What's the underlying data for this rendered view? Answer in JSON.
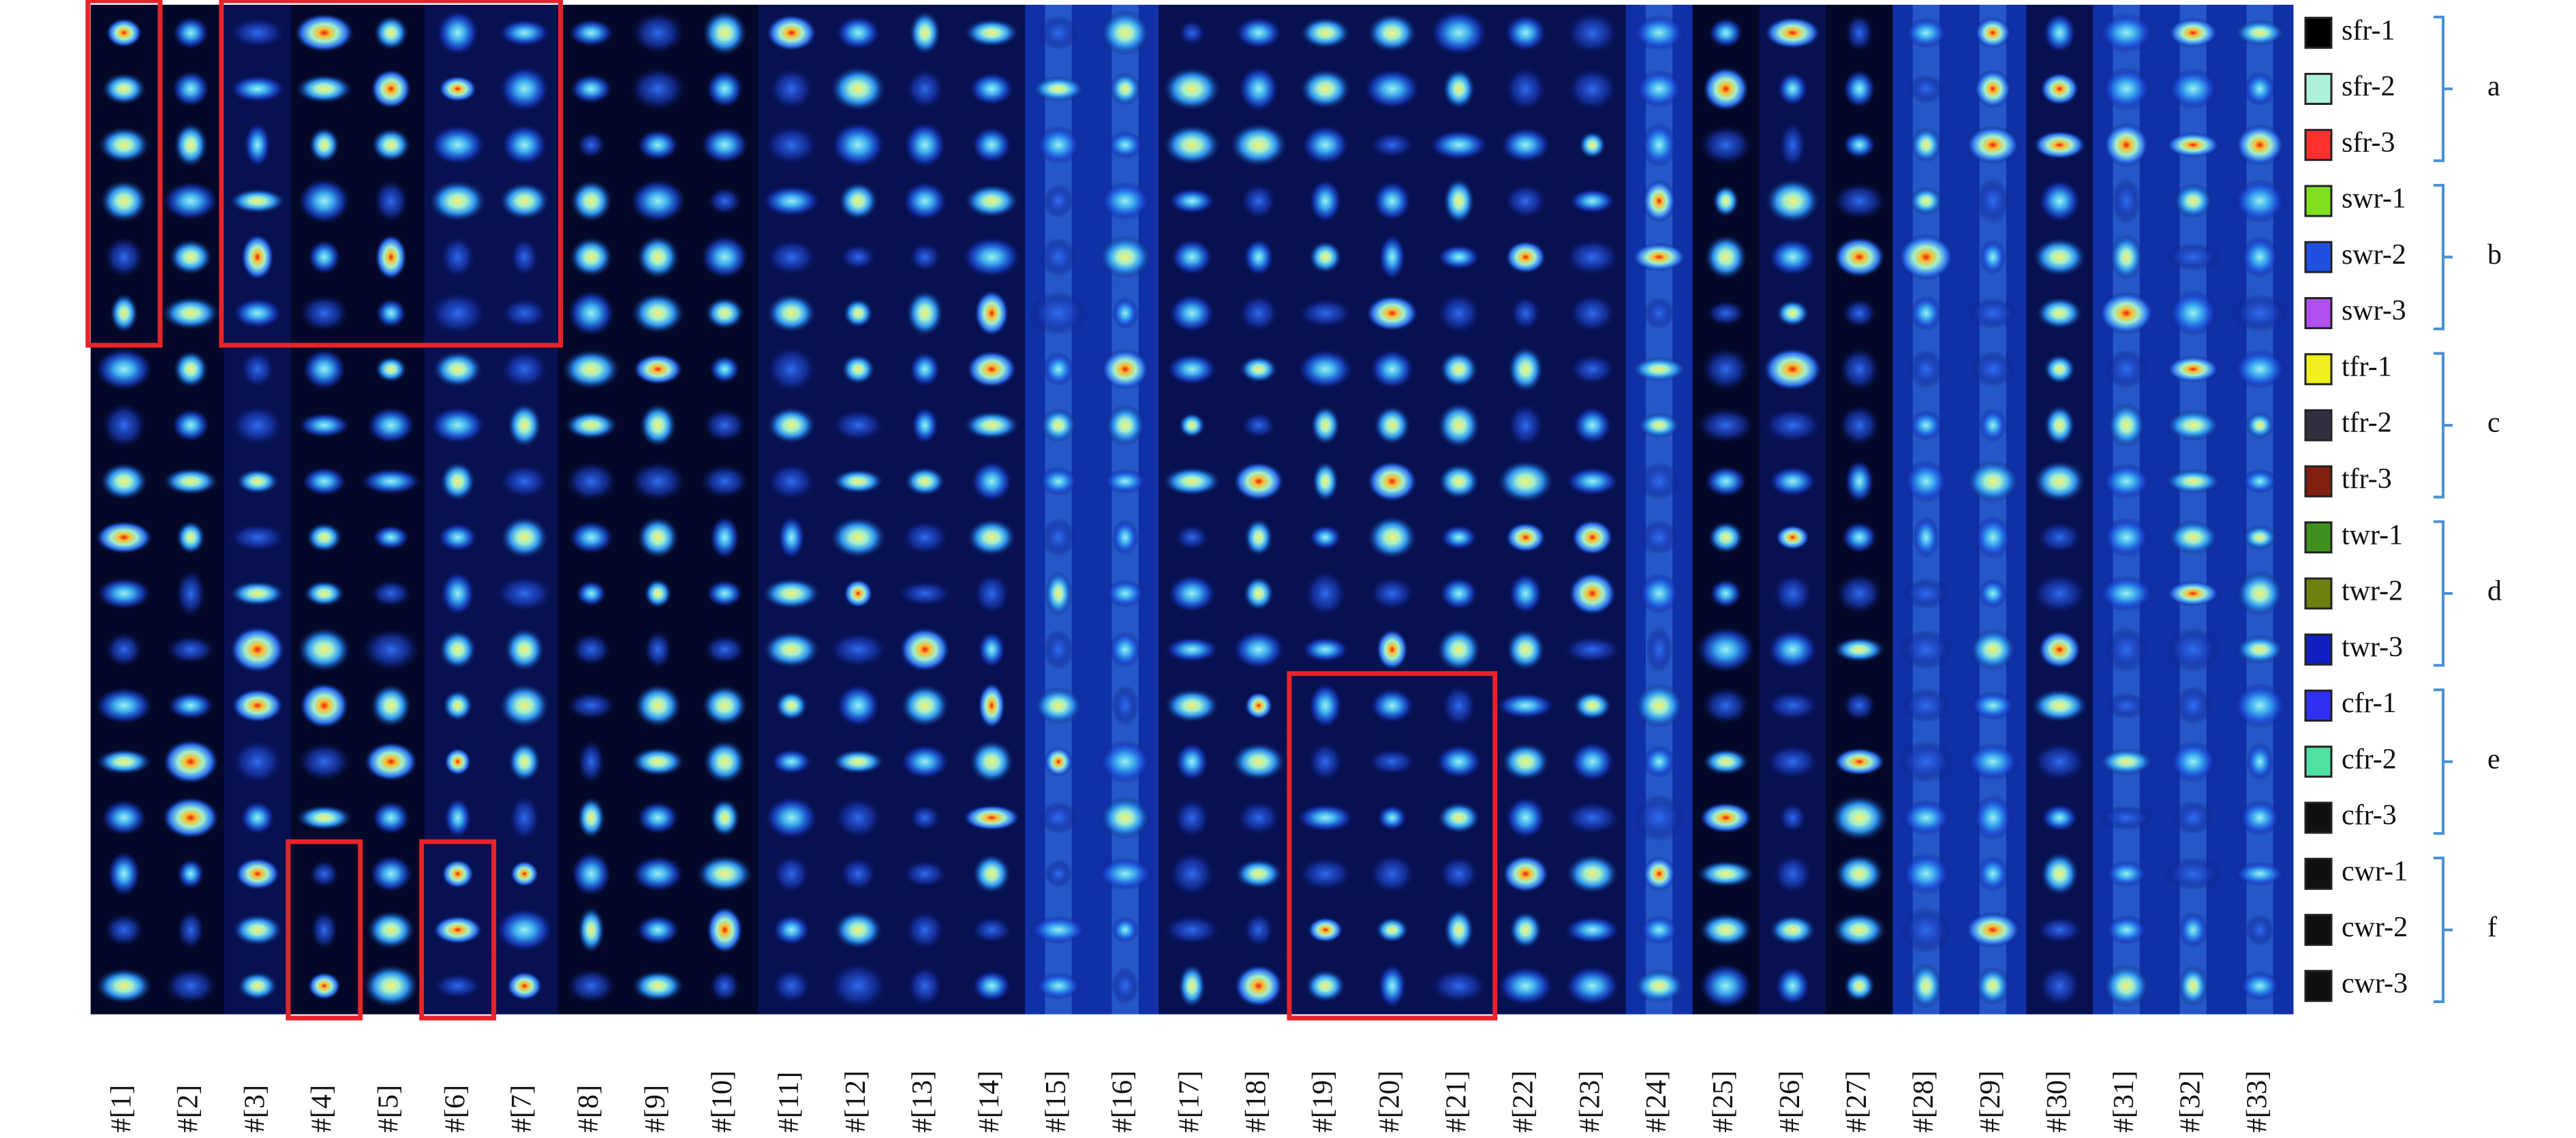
{
  "columns": [
    "#[1]",
    "#[2]",
    "#[3]",
    "#[4]",
    "#[5]",
    "#[6]",
    "#[7]",
    "#[8]",
    "#[9]",
    "#[10]",
    "#[11]",
    "#[12]",
    "#[13]",
    "#[14]",
    "#[15]",
    "#[16]",
    "#[17]",
    "#[18]",
    "#[19]",
    "#[20]",
    "#[21]",
    "#[22]",
    "#[23]",
    "#[24]",
    "#[25]",
    "#[26]",
    "#[27]",
    "#[28]",
    "#[29]",
    "#[30]",
    "#[31]",
    "#[32]",
    "#[33]"
  ],
  "legend": [
    {
      "label": "sfr-1",
      "color": "#000000"
    },
    {
      "label": "sfr-2",
      "color": "#aef0d8"
    },
    {
      "label": "sfr-3",
      "color": "#ff3030"
    },
    {
      "label": "swr-1",
      "color": "#80e020"
    },
    {
      "label": "swr-2",
      "color": "#2050e0"
    },
    {
      "label": "swr-3",
      "color": "#b050f0"
    },
    {
      "label": "tfr-1",
      "color": "#f0f020"
    },
    {
      "label": "tfr-2",
      "color": "#303040"
    },
    {
      "label": "tfr-3",
      "color": "#802010"
    },
    {
      "label": "twr-1",
      "color": "#409020"
    },
    {
      "label": "twr-2",
      "color": "#708010"
    },
    {
      "label": "twr-3",
      "color": "#1020c0"
    },
    {
      "label": "cfr-1",
      "color": "#3030f0"
    },
    {
      "label": "cfr-2",
      "color": "#50e0a0"
    },
    {
      "label": "cfr-3",
      "color": "#101010"
    },
    {
      "label": "cwr-1",
      "color": "#101010"
    },
    {
      "label": "cwr-2",
      "color": "#101010"
    },
    {
      "label": "cwr-3",
      "color": "#101010"
    }
  ],
  "groups": [
    "a",
    "b",
    "c",
    "d",
    "e",
    "f"
  ]
}
